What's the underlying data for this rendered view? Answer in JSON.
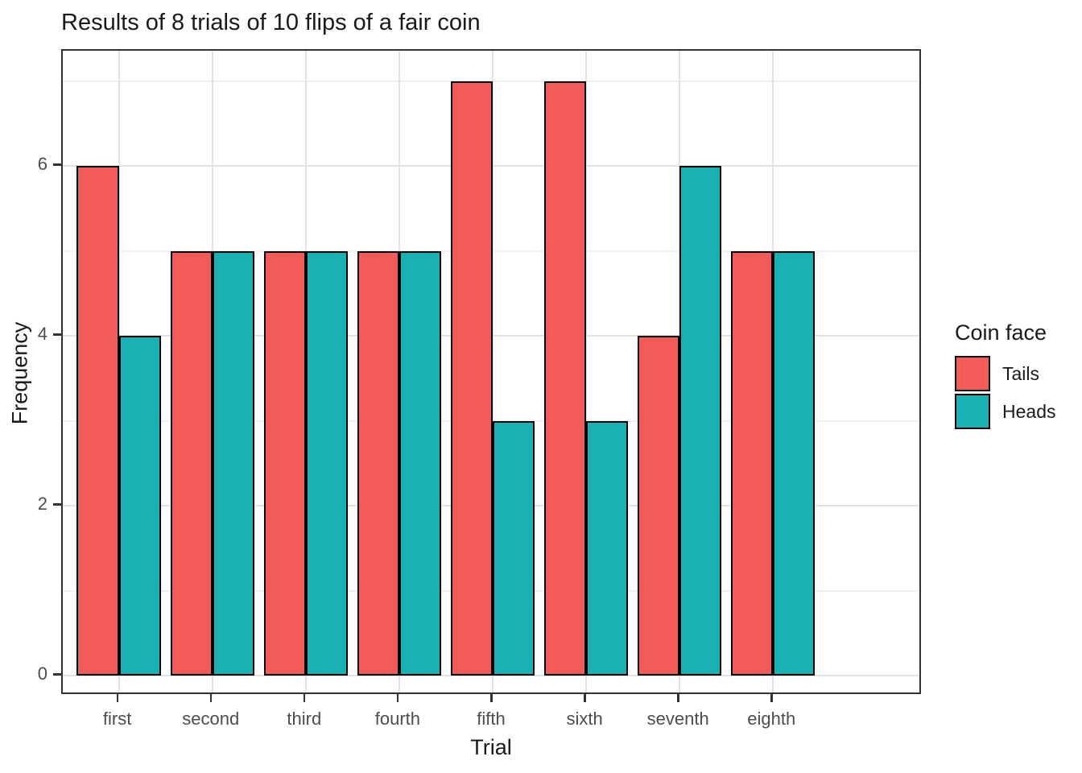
{
  "chart_data": {
    "type": "bar",
    "title": "Results of 8 trials of 10 flips of a fair coin",
    "xlabel": "Trial",
    "ylabel": "Frequency",
    "categories": [
      "first",
      "second",
      "third",
      "fourth",
      "fifth",
      "sixth",
      "seventh",
      "eighth"
    ],
    "series": [
      {
        "name": "Tails",
        "color": "#f25c58",
        "values": [
          6,
          5,
          5,
          5,
          7,
          7,
          4,
          5
        ]
      },
      {
        "name": "Heads",
        "color": "#19b2b4",
        "values": [
          4,
          5,
          5,
          5,
          3,
          3,
          6,
          5
        ]
      }
    ],
    "legend_title": "Coin face",
    "legend_position": "right",
    "y_ticks": [
      0,
      2,
      4,
      6
    ],
    "y_minor_ticks": [
      1,
      3,
      5,
      7
    ],
    "ylim": [
      0,
      7
    ],
    "grid": "major and minor horizontal, major vertical per category",
    "bar_outline_color": "#000000",
    "panel_border_color": "#333333"
  }
}
